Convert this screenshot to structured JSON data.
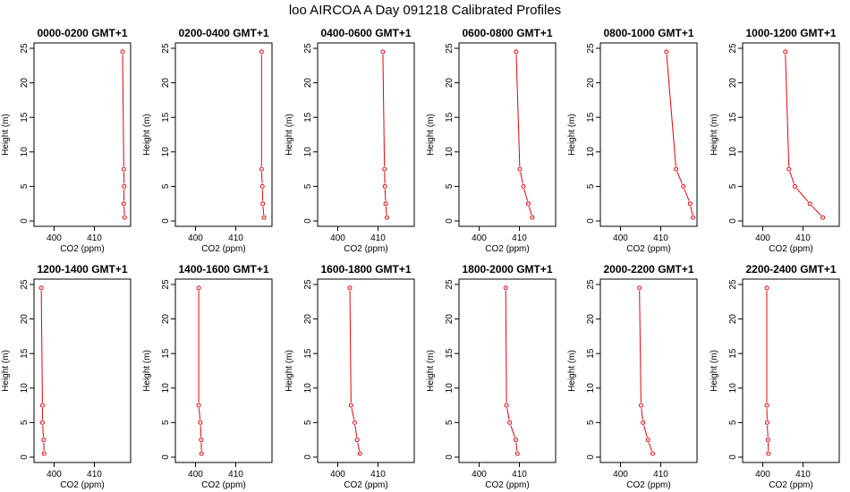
{
  "figure": {
    "title": "loo AIRCOA A  Day 091218  Calibrated Profiles",
    "line_color": "#e8000b",
    "point_color": "#e8000b"
  },
  "chart_data": [
    {
      "type": "line",
      "title": "0000-0200 GMT+1",
      "xlabel": "CO2 (ppm)",
      "ylabel": "Height (m)",
      "xlim": [
        395,
        419
      ],
      "ylim": [
        0,
        25
      ],
      "xticks": [
        400,
        410
      ],
      "yticks": [
        0,
        5,
        10,
        15,
        20,
        25
      ],
      "series": [
        {
          "x": [
            417.5,
            417.3,
            417.4,
            417.3,
            417.0
          ],
          "y": [
            0.5,
            2.5,
            5,
            7.5,
            24.5
          ]
        }
      ]
    },
    {
      "type": "line",
      "title": "0200-0400 GMT+1",
      "xlabel": "CO2 (ppm)",
      "ylabel": "Height (m)",
      "xlim": [
        395,
        419
      ],
      "ylim": [
        0,
        25
      ],
      "xticks": [
        400,
        410
      ],
      "yticks": [
        0,
        5,
        10,
        15,
        20,
        25
      ],
      "series": [
        {
          "x": [
            417.0,
            416.7,
            416.6,
            416.4,
            416.4
          ],
          "y": [
            0.5,
            2.5,
            5,
            7.5,
            24.5
          ]
        }
      ]
    },
    {
      "type": "line",
      "title": "0400-0600 GMT+1",
      "xlabel": "CO2 (ppm)",
      "ylabel": "Height (m)",
      "xlim": [
        395,
        419
      ],
      "ylim": [
        0,
        25
      ],
      "xticks": [
        400,
        410
      ],
      "yticks": [
        0,
        5,
        10,
        15,
        20,
        25
      ],
      "series": [
        {
          "x": [
            412.2,
            411.9,
            411.7,
            411.6,
            411.2
          ],
          "y": [
            0.5,
            2.5,
            5,
            7.5,
            24.5
          ]
        }
      ]
    },
    {
      "type": "line",
      "title": "0600-0800 GMT+1",
      "xlabel": "CO2 (ppm)",
      "ylabel": "Height (m)",
      "xlim": [
        395,
        419
      ],
      "ylim": [
        0,
        25
      ],
      "xticks": [
        400,
        410
      ],
      "yticks": [
        0,
        5,
        10,
        15,
        20,
        25
      ],
      "series": [
        {
          "x": [
            413.2,
            412.2,
            411.0,
            410.1,
            409.2
          ],
          "y": [
            0.5,
            2.5,
            5,
            7.5,
            24.5
          ]
        }
      ]
    },
    {
      "type": "line",
      "title": "0800-1000 GMT+1",
      "xlabel": "CO2 (ppm)",
      "ylabel": "Height (m)",
      "xlim": [
        395,
        419
      ],
      "ylim": [
        0,
        25
      ],
      "xticks": [
        400,
        410
      ],
      "yticks": [
        0,
        5,
        10,
        15,
        20,
        25
      ],
      "series": [
        {
          "x": [
            418.0,
            417.3,
            415.6,
            413.8,
            411.4
          ],
          "y": [
            0.5,
            2.5,
            5,
            7.5,
            24.5
          ]
        }
      ]
    },
    {
      "type": "line",
      "title": "1000-1200 GMT+1",
      "xlabel": "CO2 (ppm)",
      "ylabel": "Height (m)",
      "xlim": [
        395,
        419
      ],
      "ylim": [
        0,
        25
      ],
      "xticks": [
        400,
        410
      ],
      "yticks": [
        0,
        5,
        10,
        15,
        20,
        25
      ],
      "series": [
        {
          "x": [
            414.9,
            411.7,
            408.0,
            406.5,
            405.6
          ],
          "y": [
            0.5,
            2.5,
            5,
            7.5,
            24.5
          ]
        }
      ]
    },
    {
      "type": "line",
      "title": "1200-1400 GMT+1",
      "xlabel": "CO2 (ppm)",
      "ylabel": "Height (m)",
      "xlim": [
        395,
        419
      ],
      "ylim": [
        0,
        25
      ],
      "xticks": [
        400,
        410
      ],
      "yticks": [
        0,
        5,
        10,
        15,
        20,
        25
      ],
      "series": [
        {
          "x": [
            397.5,
            397.4,
            397.1,
            397.1,
            396.8
          ],
          "y": [
            0.5,
            2.5,
            5,
            7.5,
            24.5
          ]
        }
      ]
    },
    {
      "type": "line",
      "title": "1400-1600 GMT+1",
      "xlabel": "CO2 (ppm)",
      "ylabel": "Height (m)",
      "xlim": [
        395,
        419
      ],
      "ylim": [
        0,
        25
      ],
      "xticks": [
        400,
        410
      ],
      "yticks": [
        0,
        5,
        10,
        15,
        20,
        25
      ],
      "series": [
        {
          "x": [
            401.5,
            401.4,
            401.2,
            400.8,
            400.8
          ],
          "y": [
            0.5,
            2.5,
            5,
            7.5,
            24.5
          ]
        }
      ]
    },
    {
      "type": "line",
      "title": "1600-1800 GMT+1",
      "xlabel": "CO2 (ppm)",
      "ylabel": "Height (m)",
      "xlim": [
        395,
        419
      ],
      "ylim": [
        0,
        25
      ],
      "xticks": [
        400,
        410
      ],
      "yticks": [
        0,
        5,
        10,
        15,
        20,
        25
      ],
      "series": [
        {
          "x": [
            405.5,
            404.8,
            404.2,
            403.3,
            403.0
          ],
          "y": [
            0.5,
            2.5,
            5,
            7.5,
            24.5
          ]
        }
      ]
    },
    {
      "type": "line",
      "title": "1800-2000 GMT+1",
      "xlabel": "CO2 (ppm)",
      "ylabel": "Height (m)",
      "xlim": [
        395,
        419
      ],
      "ylim": [
        0,
        25
      ],
      "xticks": [
        400,
        410
      ],
      "yticks": [
        0,
        5,
        10,
        15,
        20,
        25
      ],
      "series": [
        {
          "x": [
            409.5,
            409.1,
            407.6,
            406.8,
            406.6
          ],
          "y": [
            0.5,
            2.5,
            5,
            7.5,
            24.5
          ]
        }
      ]
    },
    {
      "type": "line",
      "title": "2000-2200 GMT+1",
      "xlabel": "CO2 (ppm)",
      "ylabel": "Height (m)",
      "xlim": [
        395,
        419
      ],
      "ylim": [
        0,
        25
      ],
      "xticks": [
        400,
        410
      ],
      "yticks": [
        0,
        5,
        10,
        15,
        20,
        25
      ],
      "series": [
        {
          "x": [
            408.0,
            406.8,
            405.6,
            405.1,
            404.7
          ],
          "y": [
            0.5,
            2.5,
            5,
            7.5,
            24.5
          ]
        }
      ]
    },
    {
      "type": "line",
      "title": "2200-2400 GMT+1",
      "xlabel": "CO2 (ppm)",
      "ylabel": "Height (m)",
      "xlim": [
        395,
        419
      ],
      "ylim": [
        0,
        25
      ],
      "xticks": [
        400,
        410
      ],
      "yticks": [
        0,
        5,
        10,
        15,
        20,
        25
      ],
      "series": [
        {
          "x": [
            401.4,
            401.3,
            401.1,
            401.0,
            401.0
          ],
          "y": [
            0.5,
            2.5,
            5,
            7.5,
            24.5
          ]
        }
      ]
    }
  ]
}
